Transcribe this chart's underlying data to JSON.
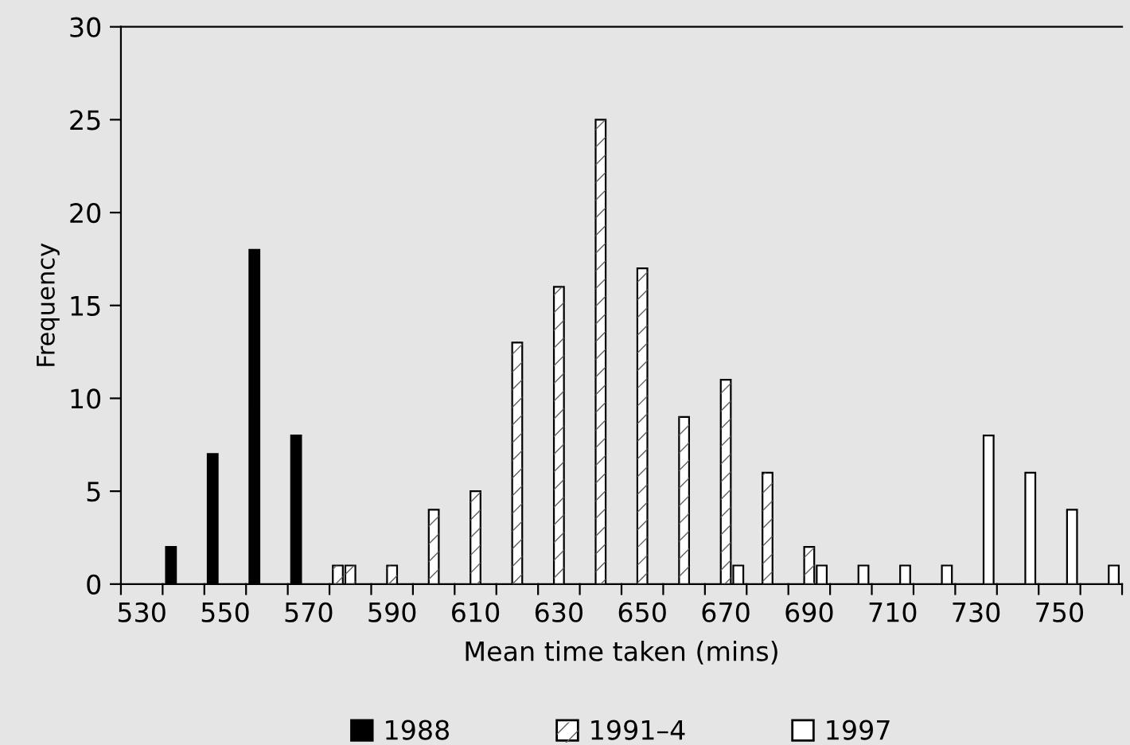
{
  "chart_data": {
    "type": "bar",
    "xlabel": "Mean time taken (mins)",
    "ylabel": "Frequency",
    "categories": [
      "530",
      null,
      "550",
      null,
      "570",
      null,
      "590",
      null,
      "610",
      null,
      "630",
      null,
      "650",
      null,
      "670",
      null,
      "690",
      null,
      "710",
      null,
      "730",
      null,
      "750",
      null
    ],
    "series": [
      {
        "name": "1988",
        "color": "#000000",
        "colors": [
          "#000000",
          "#000000",
          "#000000",
          "#000000",
          "#000000",
          "#ffffff",
          "#000000",
          "#000000",
          "#000000",
          "#000000",
          "#000000",
          "#000000",
          "#000000",
          "#000000",
          "#000000",
          "#000000",
          "#000000",
          "#000000",
          "#000000",
          "#000000",
          "#000000",
          "#000000",
          "#000000",
          "#000000"
        ],
        "values": [
          null,
          2,
          7,
          18,
          8,
          1,
          null,
          null,
          null,
          null,
          null,
          null,
          null,
          null,
          null,
          null,
          null,
          null,
          null,
          null,
          null,
          null,
          null,
          null
        ]
      },
      {
        "name": "1991–4",
        "color": "#ffffff",
        "values": [
          null,
          null,
          null,
          null,
          null,
          1,
          1,
          4,
          5,
          13,
          16,
          25,
          17,
          9,
          11,
          6,
          2,
          null,
          null,
          null,
          null,
          null,
          null,
          null
        ]
      },
      {
        "name": "1997",
        "color": "#ffffff",
        "values": [
          null,
          null,
          null,
          null,
          null,
          null,
          null,
          null,
          null,
          null,
          null,
          null,
          null,
          null,
          1,
          null,
          1,
          1,
          1,
          1,
          8,
          6,
          4,
          1
        ]
      }
    ],
    "ylim": [
      0,
      30
    ],
    "yticks": [
      0,
      5,
      10,
      15,
      20,
      25,
      30
    ],
    "grid": false,
    "legend": "bottom"
  }
}
